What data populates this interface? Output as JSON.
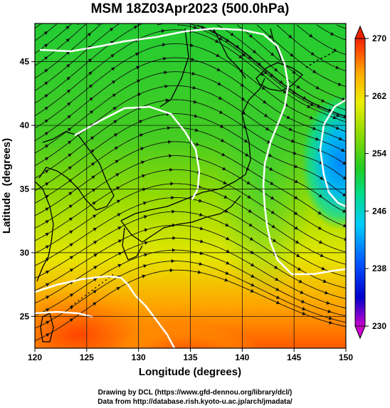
{
  "chart_data": {
    "type": "heatmap",
    "title": "MSM 18Z03Apr2023 (500.0hPa)",
    "xlabel": "Longitude (degrees)",
    "ylabel": "Latitude  (degrees)",
    "xlim": [
      120,
      150
    ],
    "ylim": [
      22.5,
      48
    ],
    "xticks": [
      "120",
      "125",
      "130",
      "135",
      "140",
      "145",
      "150"
    ],
    "yticks": [
      "25",
      "30",
      "35",
      "40",
      "45"
    ],
    "colorbar": {
      "min": 230,
      "max": 270,
      "ticks": [
        "230",
        "238",
        "246",
        "254",
        "262",
        "270"
      ],
      "extend": "both",
      "colors": [
        "#cc00cc",
        "#0000cc",
        "#0055ff",
        "#00ccff",
        "#00dd88",
        "#22cc22",
        "#99dd00",
        "#eeee00",
        "#ffaa00",
        "#ff5500",
        "#ee2200"
      ]
    },
    "grid": true,
    "overlay": [
      "coastlines",
      "streamlines",
      "white contours"
    ]
  },
  "footer": {
    "line1": "Drawing by DCL (https://www.gfd-dennou.org/library/dcl/)",
    "line2": "Data from http://database.rish.kyoto-u.ac.jp/arch/jmadata/"
  }
}
